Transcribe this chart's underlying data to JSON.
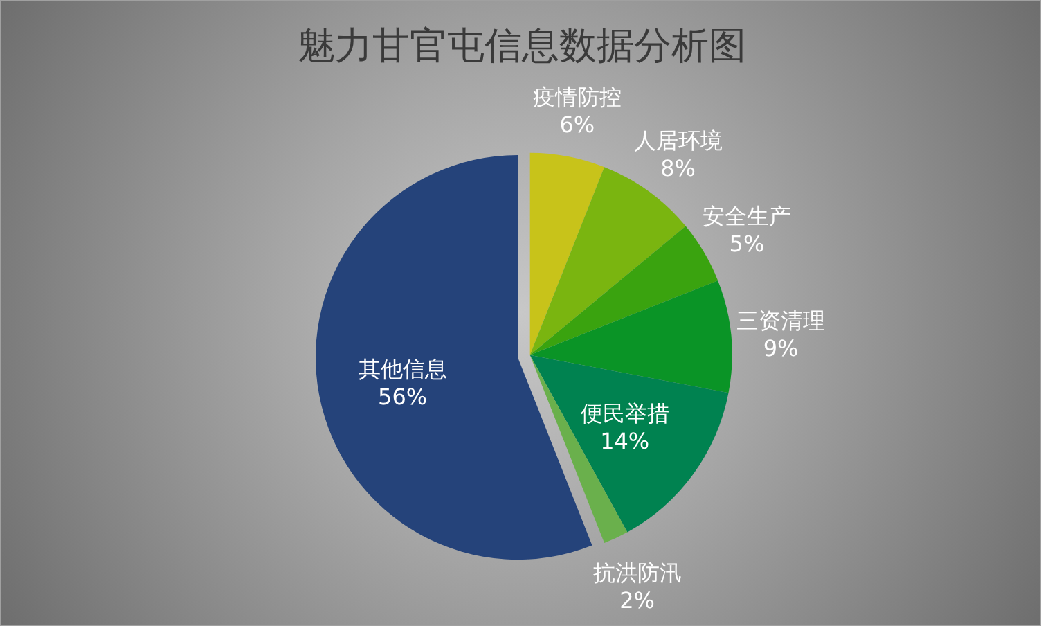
{
  "chart_data": {
    "type": "pie",
    "title": "魅力甘官屯信息数据分析图",
    "categories": [
      "疫情防控",
      "人居环境",
      "安全生产",
      "三资清理",
      "便民举措",
      "抗洪防汛",
      "其他信息"
    ],
    "values": [
      6,
      8,
      5,
      9,
      14,
      2,
      56
    ],
    "value_labels": [
      "6%",
      "8%",
      "5%",
      "9%",
      "14%",
      "2%",
      "56%"
    ],
    "colors": [
      "#c8c31a",
      "#7ab510",
      "#3aa30f",
      "#0a9426",
      "#008250",
      "#6ab04c",
      "#25437a"
    ],
    "legend": false
  }
}
